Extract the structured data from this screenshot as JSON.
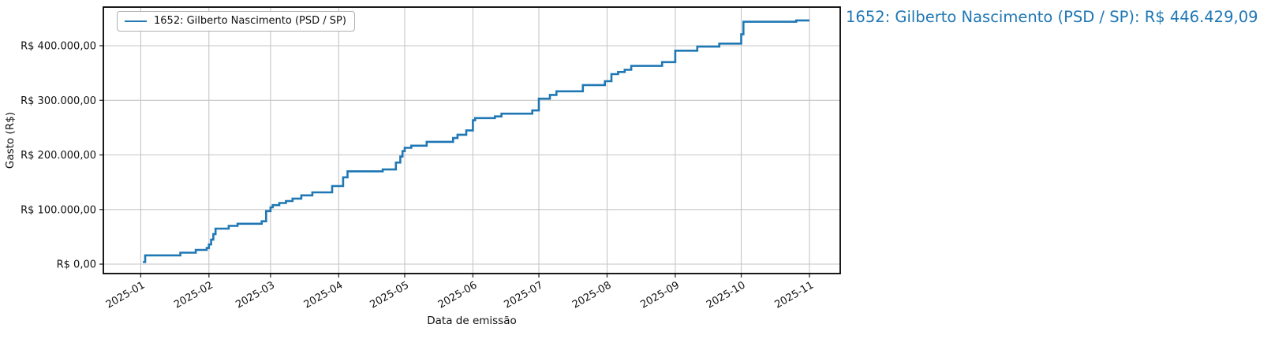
{
  "figure": {
    "background": "#ffffff",
    "annotation": {
      "text": "1652: Gilberto Nascimento (PSD / SP): R$ 446.429,09",
      "color": "#1f77b4"
    }
  },
  "chart_data": {
    "type": "line",
    "line_shape": "step-after",
    "title": "",
    "xlabel": "Data de emissão",
    "ylabel": "Gasto (R$)",
    "grid": true,
    "legend_position": "upper-left",
    "xlim": [
      "2024-12-15",
      "2025-11-15"
    ],
    "ylim": [
      -17300,
      470800
    ],
    "colors": {
      "grid": "#c6c6c6",
      "spine": "#000000",
      "tick_text": "#111111",
      "series": "#1f77b4"
    },
    "x_ticks": [
      {
        "date": "2025-01-01",
        "label": "2025-01"
      },
      {
        "date": "2025-02-01",
        "label": "2025-02"
      },
      {
        "date": "2025-03-01",
        "label": "2025-03"
      },
      {
        "date": "2025-04-01",
        "label": "2025-04"
      },
      {
        "date": "2025-05-01",
        "label": "2025-05"
      },
      {
        "date": "2025-06-01",
        "label": "2025-06"
      },
      {
        "date": "2025-07-01",
        "label": "2025-07"
      },
      {
        "date": "2025-08-01",
        "label": "2025-08"
      },
      {
        "date": "2025-09-01",
        "label": "2025-09"
      },
      {
        "date": "2025-10-01",
        "label": "2025-10"
      },
      {
        "date": "2025-11-01",
        "label": "2025-11"
      }
    ],
    "y_ticks": [
      {
        "value": 0,
        "label": "R$ 0,00"
      },
      {
        "value": 100000,
        "label": "R$ 100.000,00"
      },
      {
        "value": 200000,
        "label": "R$ 200.000,00"
      },
      {
        "value": 300000,
        "label": "R$ 300.000,00"
      },
      {
        "value": 400000,
        "label": "R$ 400.000,00"
      }
    ],
    "series": [
      {
        "name": "1652: Gilberto Nascimento (PSD / SP)",
        "color": "#1f77b4",
        "final_value": 446429.09,
        "final_value_label": "R$ 446.429,09",
        "points": [
          [
            "2025-01-02",
            4000
          ],
          [
            "2025-01-03",
            16000
          ],
          [
            "2025-01-19",
            21000
          ],
          [
            "2025-01-26",
            26000
          ],
          [
            "2025-01-31",
            29500
          ],
          [
            "2025-02-01",
            36000
          ],
          [
            "2025-02-02",
            45000
          ],
          [
            "2025-02-03",
            55000
          ],
          [
            "2025-02-04",
            65000
          ],
          [
            "2025-02-10",
            70000
          ],
          [
            "2025-02-14",
            74000
          ],
          [
            "2025-02-25",
            78500
          ],
          [
            "2025-02-27",
            97000
          ],
          [
            "2025-03-01",
            104000
          ],
          [
            "2025-03-02",
            108000
          ],
          [
            "2025-03-05",
            112000
          ],
          [
            "2025-03-08",
            115500
          ],
          [
            "2025-03-11",
            120000
          ],
          [
            "2025-03-15",
            126000
          ],
          [
            "2025-03-20",
            131500
          ],
          [
            "2025-03-29",
            143000
          ],
          [
            "2025-04-03",
            159000
          ],
          [
            "2025-04-05",
            170000
          ],
          [
            "2025-04-21",
            173500
          ],
          [
            "2025-04-27",
            186000
          ],
          [
            "2025-04-29",
            197000
          ],
          [
            "2025-04-30",
            207000
          ],
          [
            "2025-05-01",
            213000
          ],
          [
            "2025-05-04",
            217000
          ],
          [
            "2025-05-11",
            224000
          ],
          [
            "2025-05-23",
            231000
          ],
          [
            "2025-05-25",
            237000
          ],
          [
            "2025-05-29",
            245000
          ],
          [
            "2025-06-01",
            263500
          ],
          [
            "2025-06-02",
            267500
          ],
          [
            "2025-06-11",
            270500
          ],
          [
            "2025-06-14",
            275500
          ],
          [
            "2025-06-28",
            281500
          ],
          [
            "2025-07-01",
            303000
          ],
          [
            "2025-07-06",
            310000
          ],
          [
            "2025-07-09",
            316500
          ],
          [
            "2025-07-21",
            328000
          ],
          [
            "2025-07-31",
            335000
          ],
          [
            "2025-08-03",
            348000
          ],
          [
            "2025-08-06",
            352000
          ],
          [
            "2025-08-09",
            356000
          ],
          [
            "2025-08-12",
            363000
          ],
          [
            "2025-08-26",
            370000
          ],
          [
            "2025-09-01",
            391000
          ],
          [
            "2025-09-11",
            398500
          ],
          [
            "2025-09-21",
            404000
          ],
          [
            "2025-10-01",
            421000
          ],
          [
            "2025-10-02",
            444000
          ],
          [
            "2025-10-26",
            446429.09
          ],
          [
            "2025-11-01",
            446429.09
          ]
        ]
      }
    ]
  }
}
